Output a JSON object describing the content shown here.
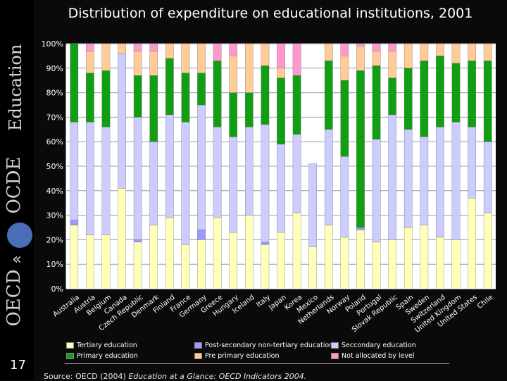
{
  "title": "Distribution of expenditure on educational institutions, 2001",
  "page_number": "17",
  "source_prefix": "Source: OECD (2004) ",
  "source_italic": "Education at a Glance: OECD Indicators 2004.",
  "branding": {
    "education": "Education",
    "ocde": "OCDE",
    "oecd": "OECD"
  },
  "colors": {
    "tertiary": "#FFFFB8",
    "post_secondary": "#9999FF",
    "secondary": "#CCCCFF",
    "primary": "#129E12",
    "pre_primary": "#FFCC99",
    "not_allocated": "#FF99CC",
    "background": "#FFFFFF",
    "grid": "#9B9BB0"
  },
  "chart_data": {
    "type": "bar",
    "stacked": true,
    "title": "Distribution of expenditure on educational institutions, 2001",
    "y_tick_labels": [
      "0%",
      "10%",
      "20%",
      "30%",
      "40%",
      "50%",
      "60%",
      "70%",
      "80%",
      "90%",
      "100%"
    ],
    "ylim": [
      0,
      100
    ],
    "categories": [
      "Australia",
      "Austria",
      "Belgium",
      "Canada",
      "Czech Republic",
      "Denmark",
      "Finland",
      "France",
      "Germany",
      "Greece",
      "Hungary",
      "Iceland",
      "Italy",
      "Japan",
      "Korea",
      "Mexico",
      "Netherlands",
      "Norway",
      "Poland",
      "Portugal",
      "Slovak Republic",
      "Spain",
      "Sweden",
      "Switzerland",
      "United Kingdom",
      "United States",
      "Chile"
    ],
    "series": [
      {
        "name": "Tertiary education",
        "key": "tertiary",
        "values": [
          26,
          22,
          22,
          41,
          19,
          26,
          29,
          18,
          20,
          29,
          23,
          30,
          18,
          23,
          31,
          17,
          26,
          21,
          24,
          19,
          20,
          25,
          26,
          21,
          20,
          37,
          31
        ]
      },
      {
        "name": "Post-secondary non-tertiary education",
        "key": "post_secondary",
        "values": [
          2,
          0,
          0,
          0,
          1,
          0,
          0,
          0,
          4,
          0,
          0,
          0,
          1,
          0,
          0,
          0,
          0,
          0,
          1,
          0,
          0,
          0,
          0,
          0,
          0,
          0,
          0
        ]
      },
      {
        "name": "Seccondary education",
        "key": "secondary",
        "values": [
          40,
          46,
          44,
          55,
          50,
          34,
          42,
          50,
          51,
          37,
          39,
          36,
          48,
          36,
          32,
          34,
          39,
          33,
          0,
          42,
          51,
          40,
          36,
          45,
          48,
          29,
          29
        ]
      },
      {
        "name": "Primary education",
        "key": "primary",
        "values": [
          32,
          20,
          23,
          0,
          17,
          27,
          23,
          20,
          13,
          27,
          18,
          14,
          24,
          27,
          24,
          0,
          28,
          31,
          64,
          30,
          15,
          25,
          31,
          29,
          24,
          27,
          33
        ]
      },
      {
        "name": "Pre primary education",
        "key": "pre_primary",
        "values": [
          0,
          9,
          11,
          4,
          10,
          10,
          6,
          12,
          12,
          0,
          15,
          20,
          9,
          4,
          0,
          0,
          7,
          10,
          10,
          6,
          11,
          10,
          7,
          5,
          8,
          7,
          7
        ]
      },
      {
        "name": "Not allocated by level",
        "key": "not_allocated",
        "values": [
          0,
          3,
          0,
          0,
          3,
          3,
          0,
          0,
          0,
          7,
          5,
          0,
          0,
          10,
          13,
          0,
          0,
          5,
          1,
          3,
          3,
          0,
          0,
          0,
          0,
          0,
          0
        ]
      }
    ],
    "legend_position": "bottom",
    "grid": true
  },
  "legend": [
    {
      "key": "tertiary",
      "label": "Tertiary education"
    },
    {
      "key": "post_secondary",
      "label": "Post-secondary non-tertiary education"
    },
    {
      "key": "secondary",
      "label": "Seccondary education"
    },
    {
      "key": "primary",
      "label": "Primary education"
    },
    {
      "key": "pre_primary",
      "label": "Pre primary education"
    },
    {
      "key": "not_allocated",
      "label": "Not allocated by level"
    }
  ]
}
